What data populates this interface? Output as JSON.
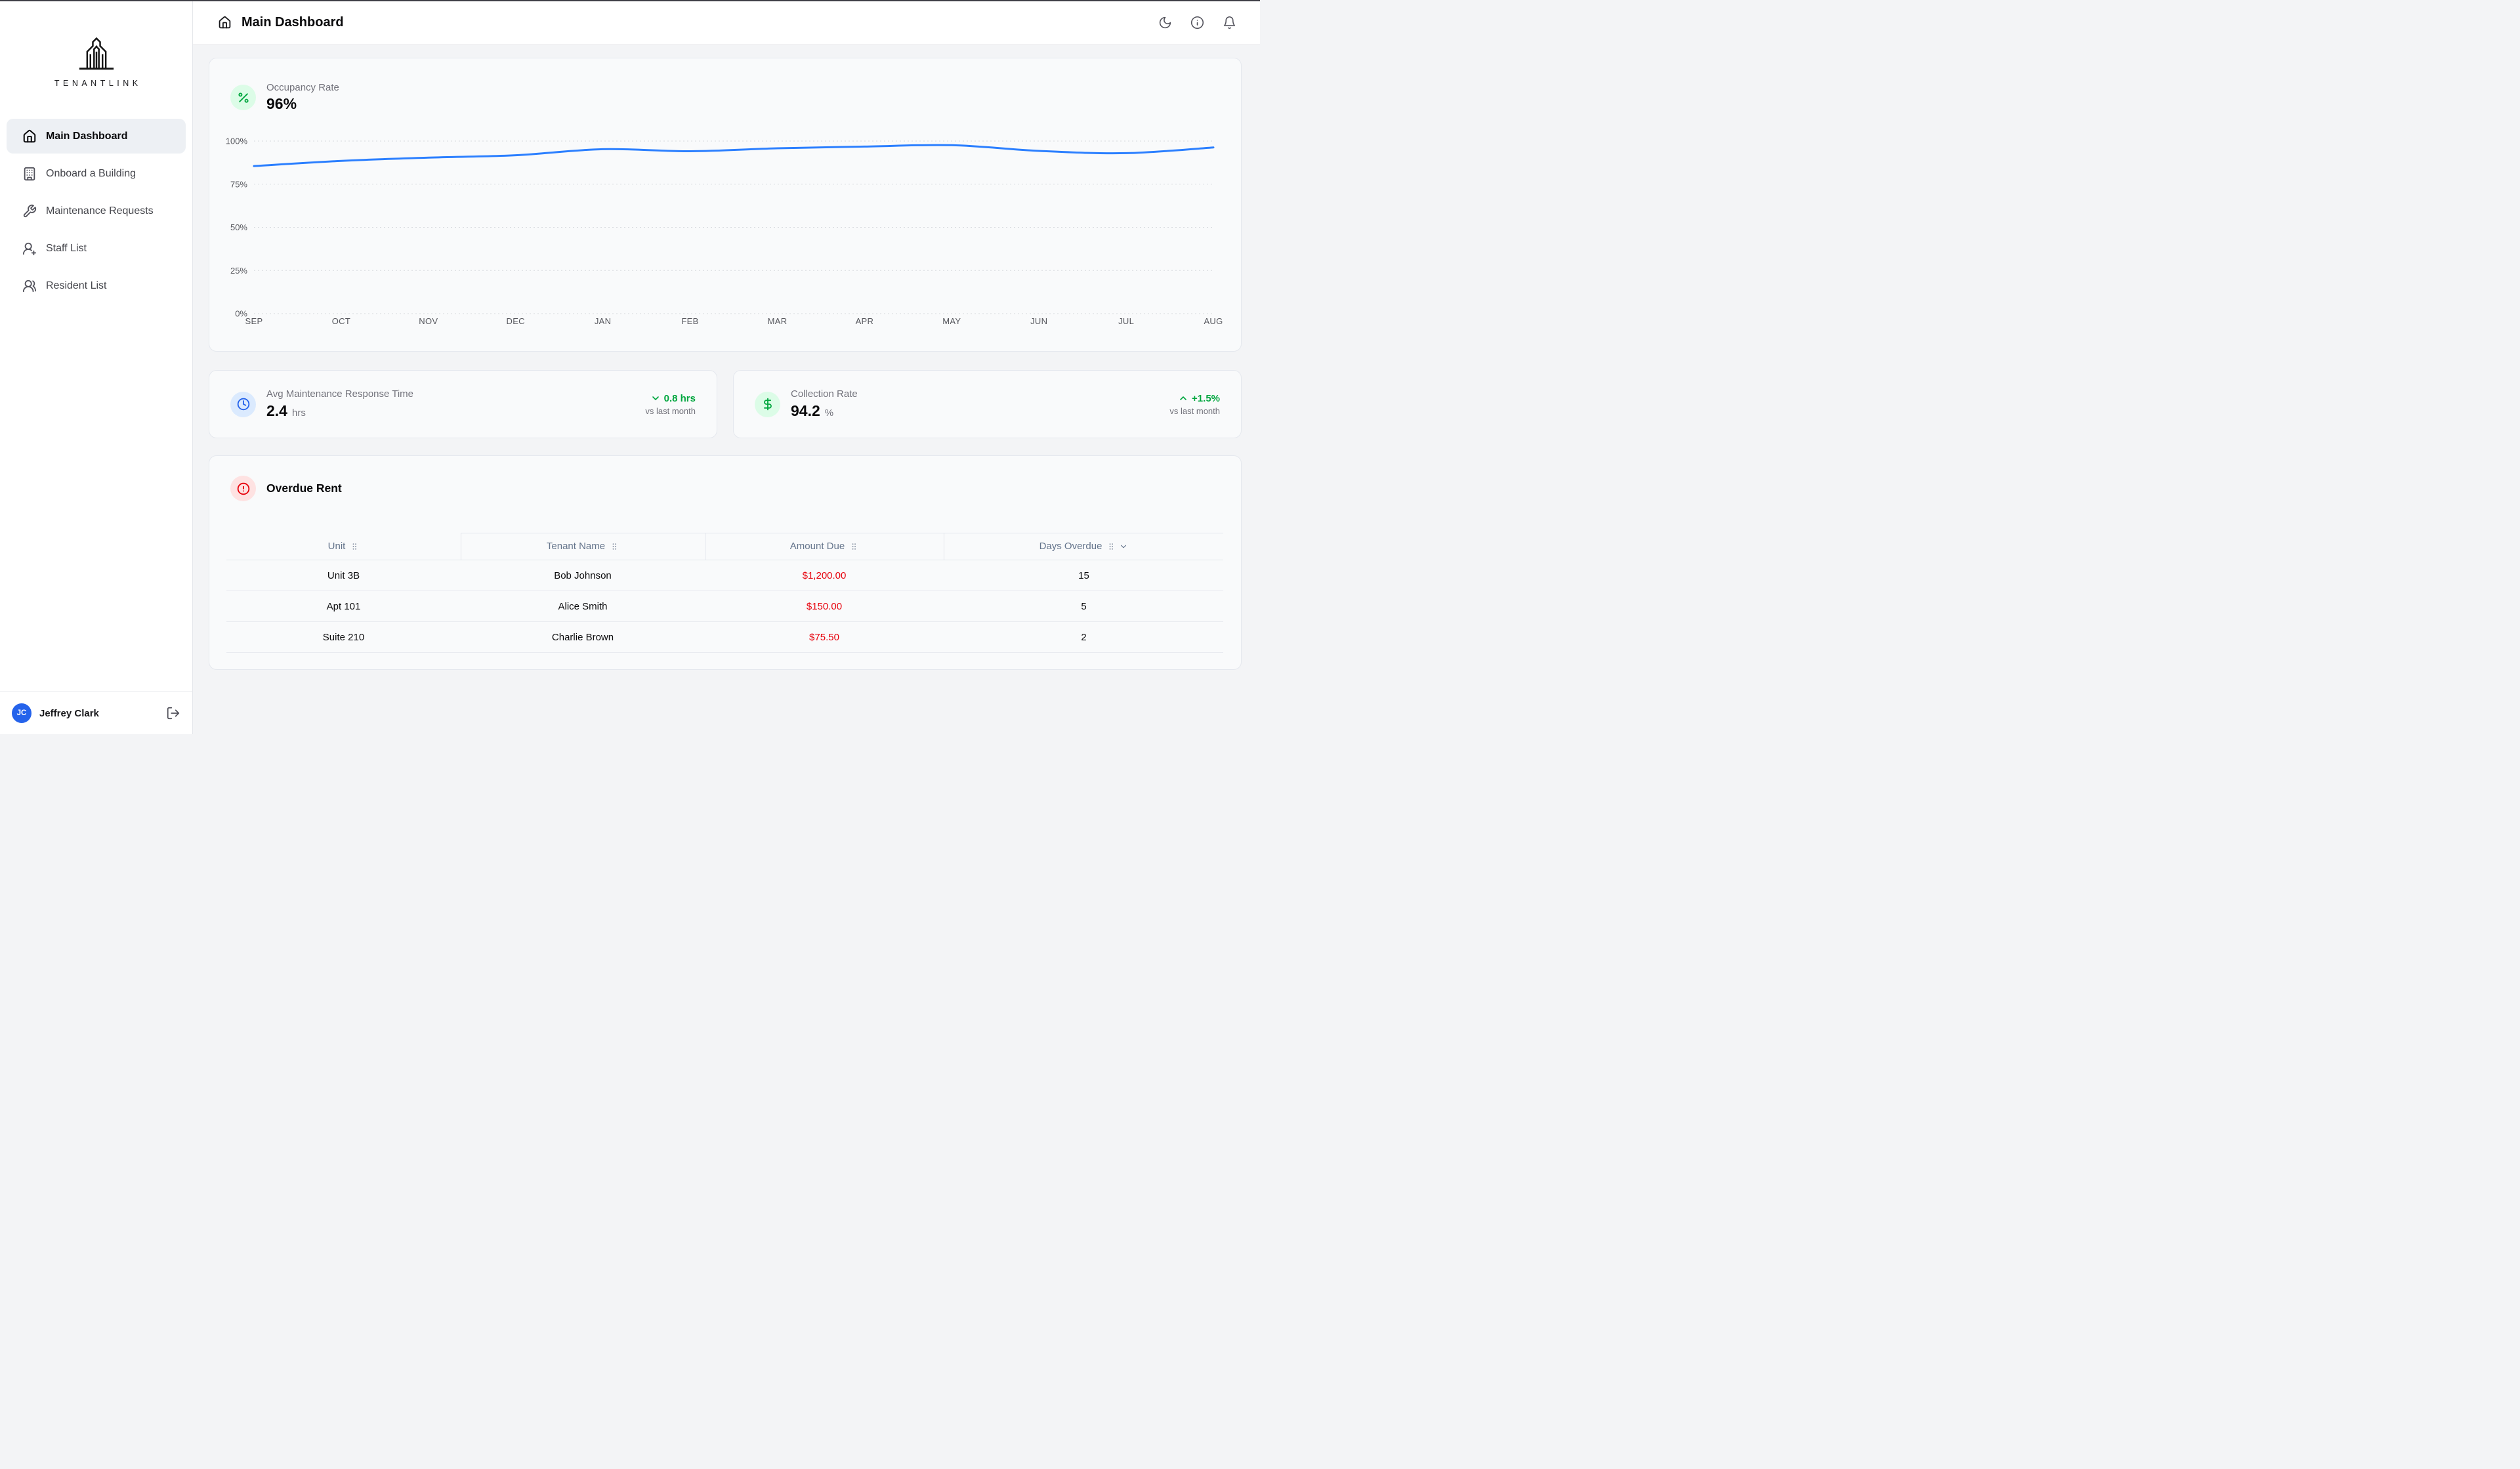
{
  "app_name": "TENANTLINK",
  "colors": {
    "accent_blue": "#2b7fff",
    "green": "#00a63e",
    "green_bg": "#dcfce7",
    "blue_icon": "#2563eb",
    "blue_bg": "#dbeafe",
    "red": "#e7000b",
    "red_bg": "#fee2e2"
  },
  "sidebar": {
    "logo_text": "TENANTLINK",
    "items": [
      {
        "label": "Main Dashboard",
        "icon": "house",
        "active": true
      },
      {
        "label": "Onboard a Building",
        "icon": "building",
        "active": false
      },
      {
        "label": "Maintenance Requests",
        "icon": "wrench",
        "active": false
      },
      {
        "label": "Staff List",
        "icon": "user-plus",
        "active": false
      },
      {
        "label": "Resident List",
        "icon": "users",
        "active": false
      }
    ],
    "user": {
      "initials": "JC",
      "name": "Jeffrey Clark"
    }
  },
  "header": {
    "title": "Main Dashboard",
    "actions": [
      "moon-icon",
      "info-icon",
      "bell-icon"
    ]
  },
  "occupancy": {
    "label": "Occupancy Rate",
    "value": "96%"
  },
  "chart_data": {
    "type": "line",
    "title": "Occupancy Rate",
    "categories": [
      "SEP",
      "OCT",
      "NOV",
      "DEC",
      "JAN",
      "FEB",
      "MAR",
      "APR",
      "MAY",
      "JUN",
      "JUL",
      "AUG"
    ],
    "values": [
      85.5,
      88.5,
      90.4,
      91.8,
      95.3,
      94.1,
      95.8,
      96.8,
      97.6,
      94.3,
      93.0,
      96.3
    ],
    "y_ticks": [
      0,
      25,
      50,
      75,
      100
    ],
    "y_tick_suffix": "%",
    "ylim": [
      0,
      100
    ],
    "xlabel": "",
    "ylabel": "",
    "grid": "dashed-horizontal",
    "legend": "none",
    "line_color": "#2b7fff"
  },
  "stats": [
    {
      "label": "Avg Maintenance Response Time",
      "value": "2.4",
      "unit": "hrs",
      "icon": "clock",
      "icon_color": "#2563eb",
      "icon_bg": "#dbeafe",
      "delta": "0.8 hrs",
      "delta_direction": "down",
      "delta_note": "vs last month"
    },
    {
      "label": "Collection Rate",
      "value": "94.2",
      "unit": "%",
      "icon": "dollar",
      "icon_color": "#00a63e",
      "icon_bg": "#dcfce7",
      "delta": "+1.5%",
      "delta_direction": "up",
      "delta_note": "vs last month"
    }
  ],
  "overdue": {
    "title": "Overdue Rent",
    "columns": [
      {
        "label": "Unit",
        "key": "unit",
        "sort_chevron": false
      },
      {
        "label": "Tenant Name",
        "key": "tenant",
        "sort_chevron": false
      },
      {
        "label": "Amount Due",
        "key": "amount",
        "sort_chevron": false
      },
      {
        "label": "Days Overdue",
        "key": "days",
        "sort_chevron": true
      }
    ],
    "rows": [
      {
        "unit": "Unit 3B",
        "tenant": "Bob Johnson",
        "amount": "$1,200.00",
        "days": "15"
      },
      {
        "unit": "Apt 101",
        "tenant": "Alice Smith",
        "amount": "$150.00",
        "days": "5"
      },
      {
        "unit": "Suite 210",
        "tenant": "Charlie Brown",
        "amount": "$75.50",
        "days": "2"
      }
    ]
  }
}
